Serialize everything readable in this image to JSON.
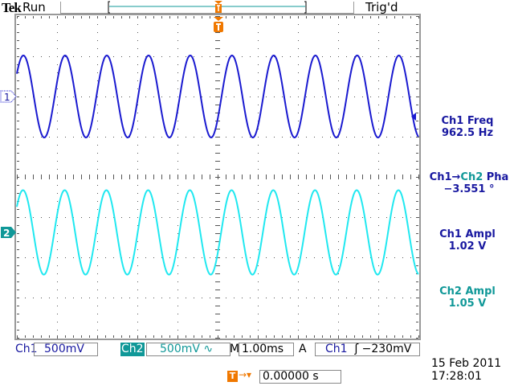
{
  "header": {
    "brand": "Tek",
    "acq_state": "Run",
    "trigger_status": "Trig'd"
  },
  "colors": {
    "ch1": "#1a1ad0",
    "ch2": "#20e8f0",
    "ch2_text": "#109898",
    "ch1_text": "#1818a0",
    "trigger": "#f07800",
    "graticule": "#666666"
  },
  "channels": [
    {
      "label": "Ch1",
      "marker": "1",
      "scale": "500mV",
      "frequency_hz": 962.5,
      "amplitude_v": 1.02
    },
    {
      "label": "Ch2",
      "marker": "2",
      "scale": "500mV",
      "scale_suffix": "∿",
      "amplitude_v": 1.05,
      "phase_deg": -3.551
    }
  ],
  "measurements": [
    {
      "name": "Ch1 Freq",
      "value": "962.5 Hz"
    },
    {
      "name_a": "Ch1",
      "arrow": "→",
      "name_b": "Ch2",
      "name_c": " Pha",
      "value": "−3.551 °"
    },
    {
      "name": "Ch1 Ampl",
      "value": "1.02 V"
    },
    {
      "name": "Ch2 Ampl",
      "value": "1.05 V"
    }
  ],
  "timebase": {
    "prefix": "M",
    "scale": "1.00ms"
  },
  "trigger": {
    "prefix": "A",
    "source": "Ch1",
    "slope": "ʃ",
    "level": "−230mV",
    "position_label": "0.00000 s",
    "marker": "T"
  },
  "datetime": {
    "date": "15 Feb  2011",
    "time": "17:28:01"
  }
}
